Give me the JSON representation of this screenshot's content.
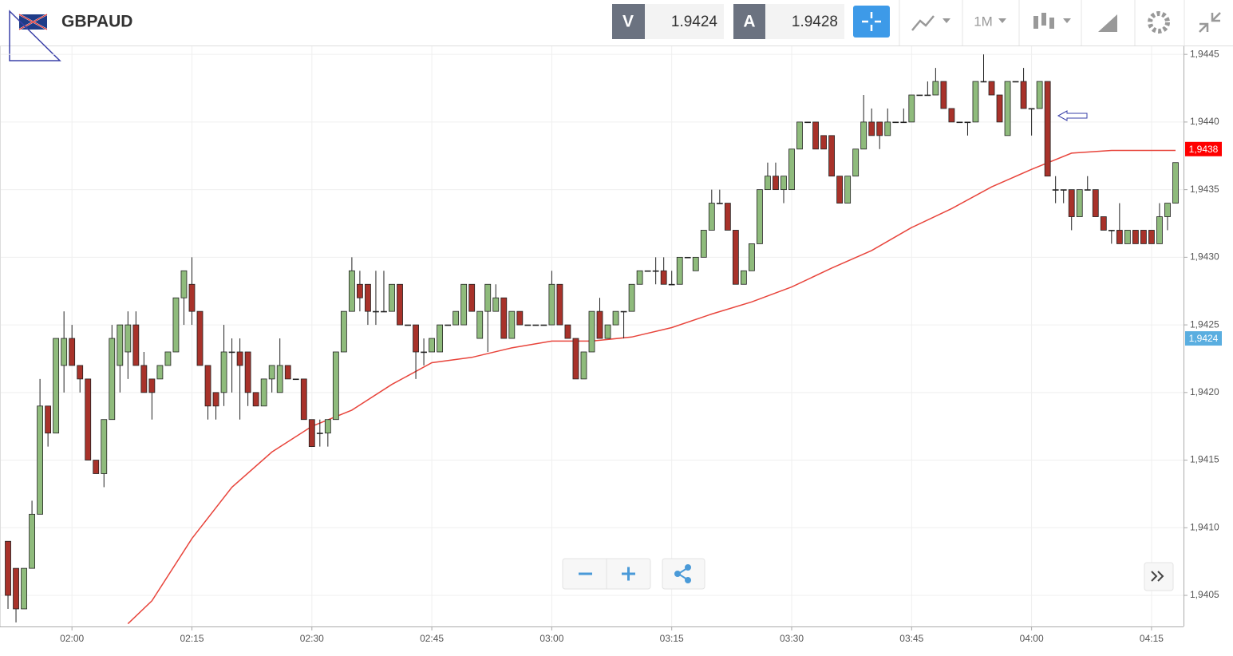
{
  "header": {
    "bid_label": "V",
    "bid": 1.9424,
    "ask_label": "A",
    "ask": 1.9428,
    "timeframe": "1M"
  },
  "chart_data": {
    "type": "candlestick",
    "title": "GBPAUD",
    "x": [
      "01:52",
      "01:53",
      "01:54",
      "01:55",
      "01:56",
      "01:57",
      "01:58",
      "01:59",
      "02:00",
      "02:01",
      "02:02",
      "02:03",
      "02:04",
      "02:05",
      "02:06",
      "02:07",
      "02:08",
      "02:09",
      "02:10",
      "02:11",
      "02:12",
      "02:13",
      "02:14",
      "02:15",
      "02:16",
      "02:17",
      "02:18",
      "02:19",
      "02:20",
      "02:21",
      "02:22",
      "02:23",
      "02:24",
      "02:25",
      "02:26",
      "02:27",
      "02:28",
      "02:29",
      "02:30",
      "02:31",
      "02:32",
      "02:33",
      "02:34",
      "02:35",
      "02:36",
      "02:37",
      "02:38",
      "02:39",
      "02:40",
      "02:41",
      "02:42",
      "02:43",
      "02:44",
      "02:45",
      "02:46",
      "02:47",
      "02:48",
      "02:49",
      "02:50",
      "02:51",
      "02:52",
      "02:53",
      "02:54",
      "02:55",
      "02:56",
      "02:57",
      "02:58",
      "02:59",
      "03:00",
      "03:01",
      "03:02",
      "03:03",
      "03:04",
      "03:05",
      "03:06",
      "03:07",
      "03:08",
      "03:09",
      "03:10",
      "03:11",
      "03:12",
      "03:13",
      "03:14",
      "03:15",
      "03:16",
      "03:17",
      "03:18",
      "03:19",
      "03:20",
      "03:21",
      "03:22",
      "03:23",
      "03:24",
      "03:25",
      "03:26",
      "03:27",
      "03:28",
      "03:29",
      "03:30",
      "03:31",
      "03:32",
      "03:33",
      "03:34",
      "03:35",
      "03:36",
      "03:37",
      "03:38",
      "03:39",
      "03:40",
      "03:41",
      "03:42",
      "03:43",
      "03:44",
      "03:45",
      "03:46",
      "03:47",
      "03:48",
      "03:49",
      "03:50",
      "03:51",
      "03:52",
      "03:53",
      "03:54",
      "03:55",
      "03:56",
      "03:57",
      "03:58",
      "03:59",
      "04:00",
      "04:01",
      "04:02",
      "04:03",
      "04:04",
      "04:05",
      "04:06",
      "04:07",
      "04:08",
      "04:09",
      "04:10",
      "04:11",
      "04:12",
      "04:13",
      "04:14",
      "04:15",
      "04:16",
      "04:17",
      "04:18"
    ],
    "ohlc": [
      [
        1.9409,
        1.9409,
        1.9404,
        1.9405
      ],
      [
        1.9407,
        1.9407,
        1.9403,
        1.9404
      ],
      [
        1.9404,
        1.9407,
        1.9404,
        1.9407
      ],
      [
        1.9407,
        1.9412,
        1.9407,
        1.9411
      ],
      [
        1.9411,
        1.9421,
        1.9411,
        1.9419
      ],
      [
        1.9419,
        1.9419,
        1.9416,
        1.9417
      ],
      [
        1.9417,
        1.9424,
        1.9417,
        1.9424
      ],
      [
        1.9422,
        1.9426,
        1.942,
        1.9424
      ],
      [
        1.9424,
        1.9425,
        1.9422,
        1.9422
      ],
      [
        1.9422,
        1.9422,
        1.942,
        1.9421
      ],
      [
        1.9421,
        1.9421,
        1.9415,
        1.9415
      ],
      [
        1.9415,
        1.9415,
        1.9414,
        1.9414
      ],
      [
        1.9414,
        1.9418,
        1.9413,
        1.9418
      ],
      [
        1.9418,
        1.9425,
        1.9418,
        1.9424
      ],
      [
        1.9422,
        1.9425,
        1.942,
        1.9425
      ],
      [
        1.9423,
        1.9426,
        1.9421,
        1.9425
      ],
      [
        1.9425,
        1.9426,
        1.9422,
        1.9422
      ],
      [
        1.9422,
        1.9423,
        1.942,
        1.942
      ],
      [
        1.9421,
        1.9421,
        1.9418,
        1.942
      ],
      [
        1.9421,
        1.9422,
        1.9421,
        1.9422
      ],
      [
        1.9422,
        1.9423,
        1.9422,
        1.9423
      ],
      [
        1.9423,
        1.9427,
        1.9423,
        1.9427
      ],
      [
        1.9427,
        1.9429,
        1.9425,
        1.9429
      ],
      [
        1.9428,
        1.943,
        1.9425,
        1.9426
      ],
      [
        1.9426,
        1.9426,
        1.9422,
        1.9422
      ],
      [
        1.9422,
        1.9422,
        1.9418,
        1.9419
      ],
      [
        1.942,
        1.942,
        1.9418,
        1.9419
      ],
      [
        1.942,
        1.9425,
        1.9419,
        1.9423
      ],
      [
        1.9423,
        1.9424,
        1.942,
        1.9423
      ],
      [
        1.9423,
        1.9424,
        1.9418,
        1.9422
      ],
      [
        1.9423,
        1.9423,
        1.9419,
        1.942
      ],
      [
        1.942,
        1.942,
        1.9419,
        1.9419
      ],
      [
        1.9419,
        1.9421,
        1.9419,
        1.9421
      ],
      [
        1.9421,
        1.9422,
        1.942,
        1.9422
      ],
      [
        1.942,
        1.9424,
        1.942,
        1.9422
      ],
      [
        1.9422,
        1.9422,
        1.9421,
        1.9421
      ],
      [
        1.9421,
        1.9421,
        1.9421,
        1.9421
      ],
      [
        1.9421,
        1.9421,
        1.9418,
        1.9418
      ],
      [
        1.9418,
        1.9418,
        1.9416,
        1.9416
      ],
      [
        1.9417,
        1.9418,
        1.9416,
        1.9417
      ],
      [
        1.9417,
        1.9418,
        1.9416,
        1.9418
      ],
      [
        1.9418,
        1.9423,
        1.9418,
        1.9423
      ],
      [
        1.9423,
        1.9426,
        1.9423,
        1.9426
      ],
      [
        1.9426,
        1.943,
        1.9426,
        1.9429
      ],
      [
        1.9428,
        1.9429,
        1.9426,
        1.9427
      ],
      [
        1.9428,
        1.9428,
        1.9425,
        1.9426
      ],
      [
        1.9426,
        1.9429,
        1.9425,
        1.9426
      ],
      [
        1.9426,
        1.9429,
        1.9426,
        1.9426
      ],
      [
        1.9426,
        1.9428,
        1.9426,
        1.9428
      ],
      [
        1.9428,
        1.9428,
        1.9425,
        1.9425
      ],
      [
        1.9425,
        1.9425,
        1.9425,
        1.9425
      ],
      [
        1.9425,
        1.9425,
        1.9421,
        1.9423
      ],
      [
        1.9423,
        1.9424,
        1.9422,
        1.9423
      ],
      [
        1.9423,
        1.9424,
        1.9423,
        1.9424
      ],
      [
        1.9423,
        1.9425,
        1.9423,
        1.9425
      ],
      [
        1.9425,
        1.9425,
        1.9425,
        1.9425
      ],
      [
        1.9425,
        1.9426,
        1.9425,
        1.9426
      ],
      [
        1.9425,
        1.9428,
        1.9425,
        1.9428
      ],
      [
        1.9428,
        1.9428,
        1.9426,
        1.9426
      ],
      [
        1.9424,
        1.9426,
        1.9424,
        1.9426
      ],
      [
        1.9426,
        1.9428,
        1.9423,
        1.9428
      ],
      [
        1.9426,
        1.9428,
        1.9426,
        1.9427
      ],
      [
        1.9427,
        1.9427,
        1.9424,
        1.9424
      ],
      [
        1.9424,
        1.9426,
        1.9424,
        1.9426
      ],
      [
        1.9426,
        1.9426,
        1.9425,
        1.9425
      ],
      [
        1.9425,
        1.9425,
        1.9425,
        1.9425
      ],
      [
        1.9425,
        1.9425,
        1.9425,
        1.9425
      ],
      [
        1.9425,
        1.9425,
        1.9425,
        1.9425
      ],
      [
        1.9425,
        1.9429,
        1.9425,
        1.9428
      ],
      [
        1.9428,
        1.9428,
        1.9425,
        1.9425
      ],
      [
        1.9425,
        1.9425,
        1.9424,
        1.9424
      ],
      [
        1.9424,
        1.9424,
        1.9421,
        1.9421
      ],
      [
        1.9421,
        1.9423,
        1.9421,
        1.9423
      ],
      [
        1.9423,
        1.9426,
        1.9423,
        1.9426
      ],
      [
        1.9426,
        1.9427,
        1.9424,
        1.9424
      ],
      [
        1.9424,
        1.9425,
        1.9424,
        1.9425
      ],
      [
        1.9425,
        1.9426,
        1.9425,
        1.9426
      ],
      [
        1.9426,
        1.9426,
        1.9424,
        1.9426
      ],
      [
        1.9426,
        1.9428,
        1.9426,
        1.9428
      ],
      [
        1.9428,
        1.9429,
        1.9428,
        1.9429
      ],
      [
        1.9429,
        1.9429,
        1.9429,
        1.9429
      ],
      [
        1.9429,
        1.943,
        1.9428,
        1.9429
      ],
      [
        1.9429,
        1.943,
        1.9428,
        1.9428
      ],
      [
        1.9428,
        1.9429,
        1.9428,
        1.9428
      ],
      [
        1.9428,
        1.943,
        1.9428,
        1.943
      ],
      [
        1.943,
        1.943,
        1.943,
        1.943
      ],
      [
        1.9429,
        1.943,
        1.9429,
        1.943
      ],
      [
        1.943,
        1.9432,
        1.943,
        1.9432
      ],
      [
        1.9432,
        1.9435,
        1.9432,
        1.9434
      ],
      [
        1.9434,
        1.9435,
        1.9434,
        1.9434
      ],
      [
        1.9434,
        1.9434,
        1.9432,
        1.9432
      ],
      [
        1.9432,
        1.9432,
        1.9428,
        1.9428
      ],
      [
        1.9428,
        1.9429,
        1.9428,
        1.9429
      ],
      [
        1.9429,
        1.9431,
        1.9429,
        1.9431
      ],
      [
        1.9431,
        1.9435,
        1.9431,
        1.9435
      ],
      [
        1.9435,
        1.9437,
        1.9435,
        1.9436
      ],
      [
        1.9436,
        1.9437,
        1.9435,
        1.9435
      ],
      [
        1.9435,
        1.9436,
        1.9434,
        1.9436
      ],
      [
        1.9435,
        1.9438,
        1.9435,
        1.9438
      ],
      [
        1.9438,
        1.944,
        1.9438,
        1.944
      ],
      [
        1.944,
        1.944,
        1.944,
        1.944
      ],
      [
        1.944,
        1.944,
        1.9438,
        1.9438
      ],
      [
        1.9439,
        1.9439,
        1.9438,
        1.9438
      ],
      [
        1.9439,
        1.9439,
        1.9436,
        1.9436
      ],
      [
        1.9436,
        1.9436,
        1.9434,
        1.9434
      ],
      [
        1.9434,
        1.9436,
        1.9434,
        1.9436
      ],
      [
        1.9436,
        1.9438,
        1.9436,
        1.9438
      ],
      [
        1.9438,
        1.9442,
        1.9438,
        1.944
      ],
      [
        1.944,
        1.9441,
        1.9439,
        1.9439
      ],
      [
        1.944,
        1.944,
        1.9438,
        1.9439
      ],
      [
        1.9439,
        1.9441,
        1.9439,
        1.944
      ],
      [
        1.944,
        1.944,
        1.944,
        1.944
      ],
      [
        1.944,
        1.9441,
        1.944,
        1.944
      ],
      [
        1.944,
        1.9442,
        1.944,
        1.9442
      ],
      [
        1.9442,
        1.9442,
        1.9442,
        1.9442
      ],
      [
        1.9442,
        1.9443,
        1.9442,
        1.9442
      ],
      [
        1.9442,
        1.9444,
        1.9442,
        1.9443
      ],
      [
        1.9443,
        1.9443,
        1.9441,
        1.9441
      ],
      [
        1.9441,
        1.9441,
        1.944,
        1.944
      ],
      [
        1.944,
        1.944,
        1.944,
        1.944
      ],
      [
        1.944,
        1.944,
        1.9439,
        1.944
      ],
      [
        1.944,
        1.9443,
        1.944,
        1.9443
      ],
      [
        1.9443,
        1.9445,
        1.9443,
        1.9443
      ],
      [
        1.9443,
        1.9443,
        1.9442,
        1.9442
      ],
      [
        1.9442,
        1.9442,
        1.944,
        1.944
      ],
      [
        1.9439,
        1.9443,
        1.9439,
        1.9443
      ],
      [
        1.9443,
        1.9443,
        1.9443,
        1.9443
      ],
      [
        1.9443,
        1.9444,
        1.9441,
        1.9441
      ],
      [
        1.9441,
        1.9441,
        1.9439,
        1.9441
      ],
      [
        1.9441,
        1.9443,
        1.9441,
        1.9443
      ],
      [
        1.9443,
        1.9443,
        1.9436,
        1.9436
      ],
      [
        1.9435,
        1.9436,
        1.9434,
        1.9435
      ],
      [
        1.9435,
        1.9435,
        1.9434,
        1.9435
      ],
      [
        1.9435,
        1.9435,
        1.9432,
        1.9433
      ],
      [
        1.9433,
        1.9435,
        1.9433,
        1.9435
      ],
      [
        1.9435,
        1.9436,
        1.9435,
        1.9435
      ],
      [
        1.9435,
        1.9435,
        1.9433,
        1.9433
      ],
      [
        1.9433,
        1.9433,
        1.9432,
        1.9432
      ],
      [
        1.9432,
        1.9432,
        1.9431,
        1.9432
      ],
      [
        1.9432,
        1.9434,
        1.9431,
        1.9431
      ],
      [
        1.9431,
        1.9432,
        1.9431,
        1.9432
      ],
      [
        1.9432,
        1.9432,
        1.9431,
        1.9431
      ],
      [
        1.9432,
        1.9432,
        1.9431,
        1.9431
      ],
      [
        1.9432,
        1.9432,
        1.9431,
        1.9431
      ],
      [
        1.9431,
        1.9434,
        1.9431,
        1.9433
      ],
      [
        1.9433,
        1.9434,
        1.9432,
        1.9434
      ],
      [
        1.9434,
        1.9437,
        1.9434,
        1.9437
      ]
    ],
    "up_color": "#8fbb7c",
    "down_color": "#a8322a",
    "moving_average": {
      "color": "#e8453c",
      "x": [
        "02:07",
        "02:10",
        "02:15",
        "02:20",
        "02:25",
        "02:30",
        "02:35",
        "02:40",
        "02:45",
        "02:50",
        "02:55",
        "03:00",
        "03:05",
        "03:10",
        "03:15",
        "03:20",
        "03:25",
        "03:30",
        "03:35",
        "03:40",
        "03:45",
        "03:50",
        "03:55",
        "04:00",
        "04:05",
        "04:10",
        "04:15",
        "04:18"
      ],
      "values": [
        1.94029,
        1.94046,
        1.94092,
        1.9413,
        1.94156,
        1.94175,
        1.94187,
        1.94206,
        1.94222,
        1.94226,
        1.94233,
        1.94238,
        1.94238,
        1.94241,
        1.94248,
        1.94258,
        1.94267,
        1.94278,
        1.94292,
        1.94305,
        1.94322,
        1.94336,
        1.94352,
        1.94365,
        1.94377,
        1.94379,
        1.94379,
        1.94379
      ]
    },
    "xlim": [
      "01:51",
      "04:19"
    ],
    "xticks": [
      "02:00",
      "02:15",
      "02:30",
      "02:45",
      "03:00",
      "03:15",
      "03:30",
      "03:45",
      "04:00",
      "04:15"
    ],
    "ylim": [
      1.94027,
      1.94456
    ],
    "yticks": [
      {
        "value": 1.9405,
        "label": "1,9405"
      },
      {
        "value": 1.941,
        "label": "1,9410"
      },
      {
        "value": 1.9415,
        "label": "1,9415"
      },
      {
        "value": 1.942,
        "label": "1,9420"
      },
      {
        "value": 1.9425,
        "label": "1,9425"
      },
      {
        "value": 1.943,
        "label": "1,9430"
      },
      {
        "value": 1.9435,
        "label": "1,9435"
      },
      {
        "value": 1.944,
        "label": "1,9440"
      },
      {
        "value": 1.9445,
        "label": "1,9445"
      }
    ],
    "grid": true,
    "price_labels": [
      {
        "value": 1.9438,
        "label": "1,9438",
        "color": "#ff0000"
      },
      {
        "value": 1.9424,
        "label": "1,9424",
        "color": "#5aaee0"
      }
    ]
  }
}
